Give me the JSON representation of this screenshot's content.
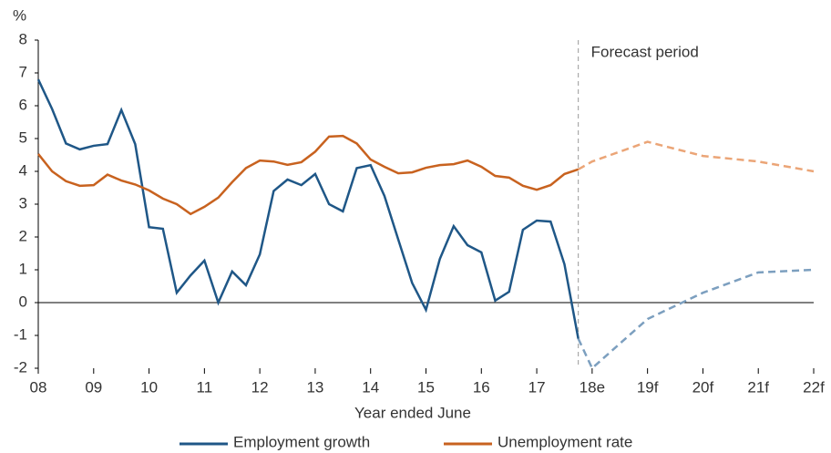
{
  "chart_data": {
    "type": "line",
    "y_label": "%",
    "x_label": "Year ended June",
    "annotation": "Forecast period",
    "forecast_start": 2017.75,
    "x": [
      2008,
      2008.25,
      2008.5,
      2008.75,
      2009,
      2009.25,
      2009.5,
      2009.75,
      2010,
      2010.25,
      2010.5,
      2010.75,
      2011,
      2011.25,
      2011.5,
      2011.75,
      2012,
      2012.25,
      2012.5,
      2012.75,
      2013,
      2013.25,
      2013.5,
      2013.75,
      2014,
      2014.25,
      2014.5,
      2014.75,
      2015,
      2015.25,
      2015.5,
      2015.75,
      2016,
      2016.25,
      2016.5,
      2016.75,
      2017,
      2017.25,
      2017.5,
      2017.75,
      2018,
      2019,
      2020,
      2021,
      2022
    ],
    "series": [
      {
        "name": "Employment growth",
        "color": "#1f5787",
        "forecast_color": "#7c9fbf",
        "values": [
          6.8,
          5.9,
          4.85,
          4.67,
          4.78,
          4.83,
          5.87,
          4.83,
          2.3,
          2.25,
          0.3,
          0.83,
          1.28,
          0,
          0.95,
          0.53,
          1.47,
          3.4,
          3.75,
          3.58,
          3.92,
          3.0,
          2.78,
          4.1,
          4.19,
          3.25,
          1.92,
          0.6,
          -0.22,
          1.33,
          2.33,
          1.75,
          1.53,
          0.06,
          0.33,
          2.22,
          2.5,
          2.47,
          1.17,
          -1.1,
          -2.0,
          -0.5,
          0.3,
          0.92,
          1.0
        ]
      },
      {
        "name": "Unemployment rate",
        "color": "#c8621f",
        "forecast_color": "#eba577",
        "values": [
          4.53,
          4.0,
          3.7,
          3.56,
          3.58,
          3.9,
          3.72,
          3.6,
          3.42,
          3.17,
          3.0,
          2.7,
          2.92,
          3.2,
          3.67,
          4.1,
          4.33,
          4.3,
          4.2,
          4.28,
          4.6,
          5.06,
          5.08,
          4.85,
          4.36,
          4.14,
          3.94,
          3.97,
          4.11,
          4.19,
          4.22,
          4.33,
          4.14,
          3.86,
          3.81,
          3.56,
          3.44,
          3.58,
          3.92,
          4.06,
          4.3,
          4.9,
          4.47,
          4.3,
          4.0
        ]
      }
    ],
    "xlim": [
      2008,
      2022
    ],
    "xticks": [
      {
        "value": 2008,
        "label": "08"
      },
      {
        "value": 2009,
        "label": "09"
      },
      {
        "value": 2010,
        "label": "10"
      },
      {
        "value": 2011,
        "label": "11"
      },
      {
        "value": 2012,
        "label": "12"
      },
      {
        "value": 2013,
        "label": "13"
      },
      {
        "value": 2014,
        "label": "14"
      },
      {
        "value": 2015,
        "label": "15"
      },
      {
        "value": 2016,
        "label": "16"
      },
      {
        "value": 2017,
        "label": "17"
      },
      {
        "value": 2018,
        "label": "18e"
      },
      {
        "value": 2019,
        "label": "19f"
      },
      {
        "value": 2020,
        "label": "20f"
      },
      {
        "value": 2021,
        "label": "21f"
      },
      {
        "value": 2022,
        "label": "22f"
      }
    ],
    "ylim": [
      -2,
      8
    ],
    "yticks": [
      -2,
      -1,
      0,
      1,
      2,
      3,
      4,
      5,
      6,
      7,
      8
    ],
    "grid": false,
    "legend": "bottom"
  }
}
